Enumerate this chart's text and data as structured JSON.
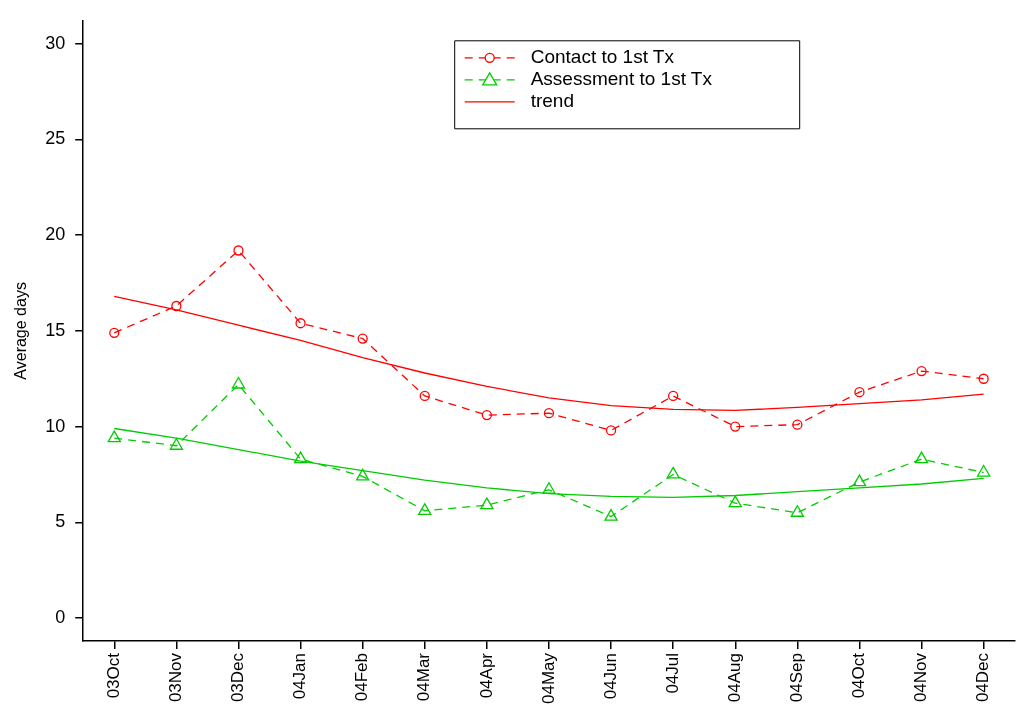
{
  "chart_data": {
    "type": "line",
    "ylabel": "Average days",
    "categories": [
      "03Oct",
      "03Nov",
      "03Dec",
      "04Jan",
      "04Feb",
      "04Mar",
      "04Apr",
      "04May",
      "04Jun",
      "04Jul",
      "04Aug",
      "04Sep",
      "04Oct",
      "04Nov",
      "04Dec"
    ],
    "series": [
      {
        "name": "Contact to 1st Tx",
        "color": "#ff0000",
        "marker": "circle",
        "line_style": "dashed",
        "values": [
          14.9,
          16.3,
          19.2,
          15.4,
          14.6,
          11.6,
          10.6,
          10.7,
          9.8,
          11.6,
          10.0,
          10.1,
          11.8,
          12.9,
          12.5
        ]
      },
      {
        "name": "Assessment to 1st Tx",
        "color": "#00cc00",
        "marker": "triangle",
        "line_style": "dashed",
        "values": [
          9.4,
          9.0,
          12.2,
          8.3,
          7.4,
          5.6,
          5.9,
          6.7,
          5.3,
          7.5,
          6.0,
          5.5,
          7.1,
          8.3,
          7.6
        ]
      },
      {
        "name": "trend",
        "color": "#ff0000",
        "marker": "none",
        "line_style": "solid",
        "values": [
          16.8,
          16.1,
          15.3,
          14.5,
          13.6,
          12.8,
          12.1,
          11.5,
          11.1,
          10.9,
          10.85,
          11.0,
          11.2,
          11.4,
          11.7
        ]
      },
      {
        "color": "#00cc00",
        "marker": "none",
        "line_style": "solid",
        "values": [
          9.9,
          9.4,
          8.8,
          8.2,
          7.7,
          7.2,
          6.8,
          6.5,
          6.35,
          6.3,
          6.4,
          6.6,
          6.8,
          7.0,
          7.3
        ]
      }
    ],
    "ylim": [
      -1.2,
      31.2
    ],
    "yticks": [
      0,
      5,
      10,
      15,
      20,
      25,
      30
    ],
    "legend": "top right"
  }
}
